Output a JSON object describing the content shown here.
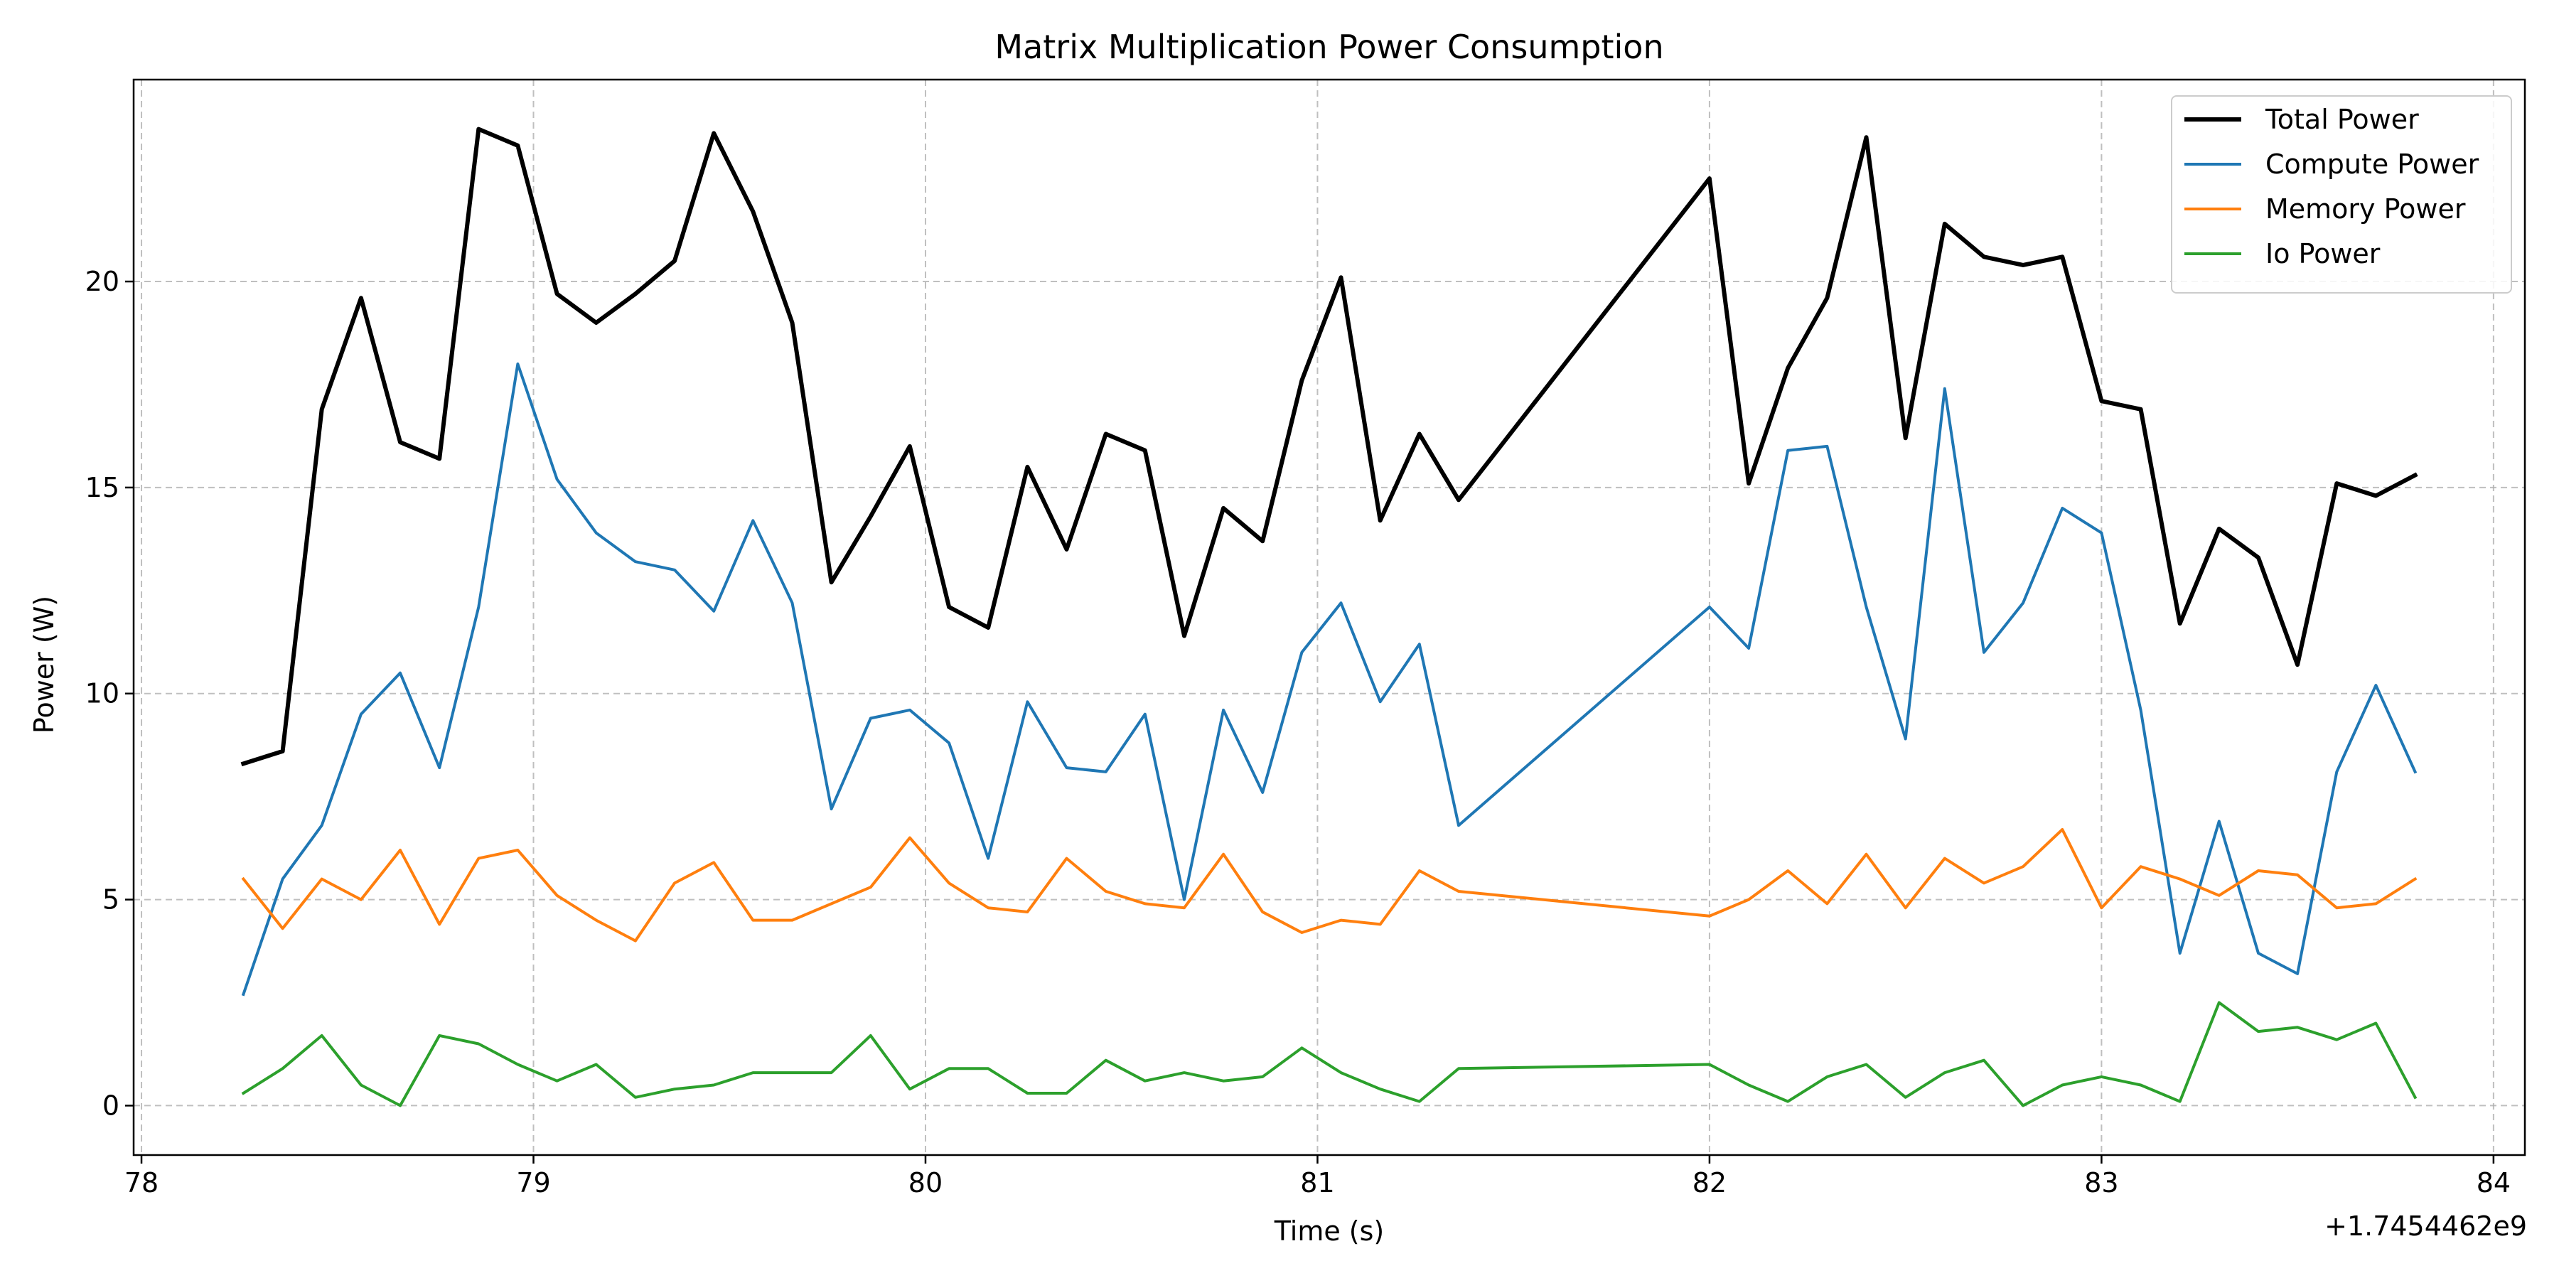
{
  "chart_data": {
    "type": "line",
    "title": "Matrix Multiplication Power Consumption",
    "xlabel": "Time (s)",
    "ylabel": "Power (W)",
    "x_offset_label": "+1.7454462e9",
    "xlim": [
      77.98,
      84.08
    ],
    "ylim": [
      -1.2,
      24.9
    ],
    "x_ticks": [
      78,
      79,
      80,
      81,
      82,
      83,
      84
    ],
    "x_tick_labels": [
      "78",
      "79",
      "80",
      "81",
      "82",
      "83",
      "84"
    ],
    "y_ticks": [
      0,
      5,
      10,
      15,
      20
    ],
    "y_tick_labels": [
      "0",
      "5",
      "10",
      "15",
      "20"
    ],
    "grid": true,
    "legend_position": "top-right",
    "x": [
      78.26,
      78.36,
      78.46,
      78.56,
      78.66,
      78.76,
      78.86,
      78.96,
      79.06,
      79.16,
      79.26,
      79.36,
      79.46,
      79.56,
      79.66,
      79.76,
      79.86,
      79.96,
      80.06,
      80.16,
      80.26,
      80.36,
      80.46,
      80.56,
      80.66,
      80.76,
      80.86,
      80.96,
      81.06,
      81.16,
      81.26,
      81.36,
      82.0,
      82.1,
      82.2,
      82.3,
      82.4,
      82.5,
      82.6,
      82.7,
      82.8,
      82.9,
      83.0,
      83.1,
      83.2,
      83.3,
      83.4,
      83.5,
      83.6,
      83.7,
      83.8
    ],
    "series": [
      {
        "name": "Total Power",
        "color": "#000000",
        "values": [
          8.3,
          8.6,
          16.9,
          19.6,
          16.1,
          15.7,
          23.7,
          23.3,
          19.7,
          19.0,
          19.7,
          20.5,
          23.6,
          21.7,
          19.0,
          12.7,
          14.3,
          16.0,
          12.1,
          11.6,
          15.5,
          13.5,
          16.3,
          15.9,
          11.4,
          14.5,
          13.7,
          17.6,
          20.1,
          14.2,
          16.3,
          14.7,
          22.5,
          15.1,
          17.9,
          19.6,
          23.5,
          16.2,
          21.4,
          20.6,
          20.4,
          20.6,
          17.1,
          16.9,
          11.7,
          14.0,
          13.3,
          10.7,
          15.1,
          14.8,
          15.3
        ]
      },
      {
        "name": "Compute Power",
        "color": "#1f77b4",
        "values": [
          2.7,
          5.5,
          6.8,
          9.5,
          10.5,
          8.2,
          12.1,
          18.0,
          15.2,
          13.9,
          13.2,
          13.0,
          12.0,
          14.2,
          12.2,
          7.2,
          9.4,
          9.6,
          8.8,
          6.0,
          9.8,
          8.2,
          8.1,
          9.5,
          5.0,
          9.6,
          7.6,
          11.0,
          12.2,
          9.8,
          11.2,
          6.8,
          12.1,
          11.1,
          15.9,
          16.0,
          12.1,
          8.9,
          17.4,
          11.0,
          12.2,
          14.5,
          13.9,
          9.6,
          3.7,
          6.9,
          3.7,
          3.2,
          8.1,
          10.2,
          8.1
        ]
      },
      {
        "name": "Memory Power",
        "color": "#ff7f0e",
        "values": [
          5.5,
          4.3,
          5.5,
          5.0,
          6.2,
          4.4,
          6.0,
          6.2,
          5.1,
          4.5,
          4.0,
          5.4,
          5.9,
          4.5,
          4.5,
          4.9,
          5.3,
          6.5,
          5.4,
          4.8,
          4.7,
          6.0,
          5.2,
          4.9,
          4.8,
          6.1,
          4.7,
          4.2,
          4.5,
          4.4,
          5.7,
          5.2,
          4.6,
          5.0,
          5.7,
          4.9,
          6.1,
          4.8,
          6.0,
          5.4,
          5.8,
          6.7,
          4.8,
          5.8,
          5.5,
          5.1,
          5.7,
          5.6,
          4.8,
          4.9,
          5.5
        ]
      },
      {
        "name": "Io Power",
        "color": "#2ca02c",
        "values": [
          0.3,
          0.9,
          1.7,
          0.5,
          0.0,
          1.7,
          1.5,
          1.0,
          0.6,
          1.0,
          0.2,
          0.4,
          0.5,
          0.8,
          0.8,
          0.8,
          1.7,
          0.4,
          0.9,
          0.9,
          0.3,
          0.3,
          1.1,
          0.6,
          0.8,
          0.6,
          0.7,
          1.4,
          0.8,
          0.4,
          0.1,
          0.9,
          1.0,
          0.5,
          0.1,
          0.7,
          1.0,
          0.2,
          0.8,
          1.1,
          0.0,
          0.5,
          0.7,
          0.5,
          0.1,
          2.5,
          1.8,
          1.9,
          1.6,
          2.0,
          0.2
        ]
      }
    ]
  }
}
